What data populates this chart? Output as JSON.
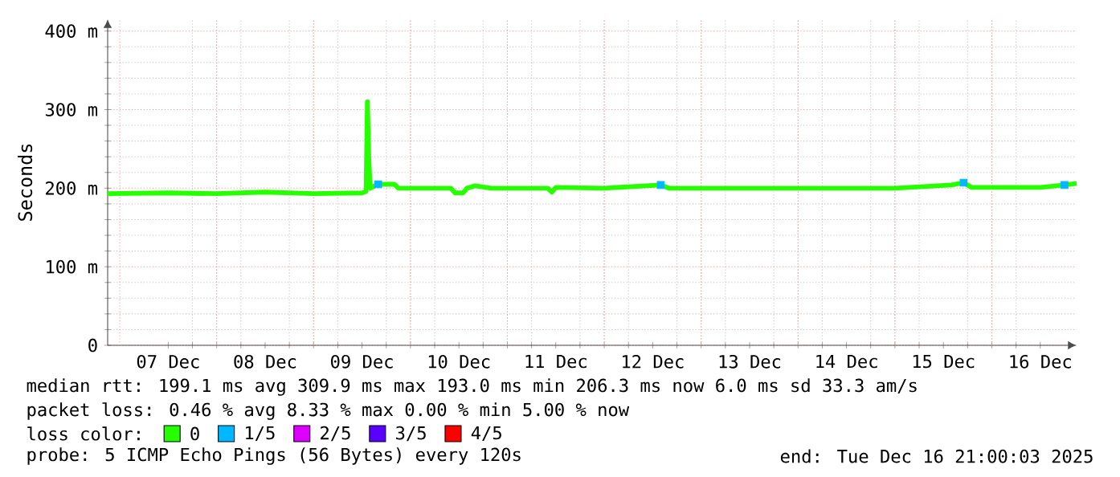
{
  "chart_data": {
    "type": "line",
    "ylabel": "Seconds",
    "xlim": [
      "2025-12-06T21:00",
      "2025-12-16T21:00"
    ],
    "xticks": [
      {
        "value": "2025-12-07T12:00",
        "label": "07 Dec"
      },
      {
        "value": "2025-12-08T12:00",
        "label": "08 Dec"
      },
      {
        "value": "2025-12-09T12:00",
        "label": "09 Dec"
      },
      {
        "value": "2025-12-10T12:00",
        "label": "10 Dec"
      },
      {
        "value": "2025-12-11T12:00",
        "label": "11 Dec"
      },
      {
        "value": "2025-12-12T12:00",
        "label": "12 Dec"
      },
      {
        "value": "2025-12-13T12:00",
        "label": "13 Dec"
      },
      {
        "value": "2025-12-14T12:00",
        "label": "14 Dec"
      },
      {
        "value": "2025-12-15T12:00",
        "label": "15 Dec"
      },
      {
        "value": "2025-12-16T12:00",
        "label": "16 Dec"
      }
    ],
    "ylim": [
      0,
      415
    ],
    "yticks": [
      0,
      {
        "value": 100,
        "label": "100 m"
      },
      {
        "value": 200,
        "label": "200 m"
      },
      {
        "value": 300,
        "label": "300 m"
      },
      {
        "value": 400,
        "label": "400 m"
      }
    ],
    "grid": true,
    "legend": "bottom",
    "legend_title": "loss color:",
    "series": [
      {
        "name": "0",
        "color": "#26ff00",
        "x": [
          "2025-12-06T21:00",
          "2025-12-07T12:00",
          "2025-12-08T00:00",
          "2025-12-08T12:00",
          "2025-12-09T00:00",
          "2025-12-09T12:00",
          "2025-12-09T13:00",
          "2025-12-09T13:20",
          "2025-12-09T13:40",
          "2025-12-09T14:00",
          "2025-12-09T16:00",
          "2025-12-09T20:00",
          "2025-12-09T21:00",
          "2025-12-10T10:00",
          "2025-12-10T11:00",
          "2025-12-10T13:00",
          "2025-12-10T14:00",
          "2025-12-10T16:00",
          "2025-12-10T20:00",
          "2025-12-11T10:00",
          "2025-12-11T11:00",
          "2025-12-11T12:00",
          "2025-12-12T00:00",
          "2025-12-12T14:00",
          "2025-12-12T16:00",
          "2025-12-13T12:00",
          "2025-12-14T12:00",
          "2025-12-15T00:00",
          "2025-12-15T14:00",
          "2025-12-15T17:00",
          "2025-12-15T19:00",
          "2025-12-16T12:00",
          "2025-12-16T18:00",
          "2025-12-16T21:00"
        ],
        "values": [
          193,
          194,
          193,
          195,
          193,
          194,
          196,
          310,
          240,
          200,
          205,
          205,
          200,
          200,
          194,
          194,
          200,
          203,
          200,
          200,
          195,
          201,
          200,
          204,
          200,
          200,
          200,
          200,
          204,
          207,
          201,
          201,
          204,
          206
        ]
      },
      {
        "name": "1/5",
        "color": "#00b8ff",
        "type": "scatter",
        "marker": "square",
        "x": [
          "2025-12-09T16:00",
          "2025-12-12T14:00",
          "2025-12-15T17:00",
          "2025-12-16T18:00"
        ],
        "values": [
          205,
          204,
          207,
          204
        ]
      },
      {
        "name": "2/5",
        "color": "#dd00ff",
        "type": "scatter",
        "marker": "square"
      },
      {
        "name": "3/5",
        "color": "#5a00ff",
        "type": "scatter",
        "marker": "square"
      },
      {
        "name": "4/5",
        "color": "#ff0000",
        "type": "scatter",
        "marker": "square"
      }
    ],
    "annotations": [
      "median rtt: 199.1 ms avg 309.9 ms max 193.0 ms min 206.3 ms now 6.0 ms sd 33.3 am/s",
      "packet loss: 0.46 % avg 8.33 % max 0.00 % min 5.00 % now",
      "probe: 5 ICMP Echo Pings (56 Bytes) every 120s",
      "end: Tue Dec 16 21:00:03 2025"
    ]
  }
}
